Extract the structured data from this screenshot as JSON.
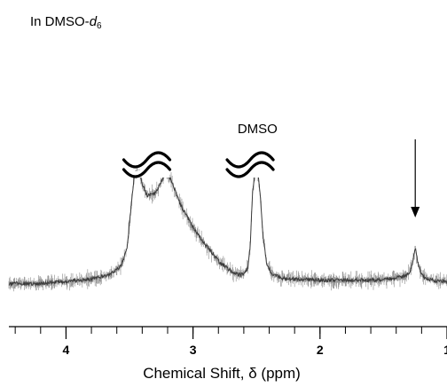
{
  "solvent": {
    "prefix": "In DMSO-",
    "italic": "d",
    "subscript": "6"
  },
  "chart_data": {
    "type": "line",
    "title": "",
    "xlabel": "Chemical Shift, δ (ppm)",
    "ylabel": "",
    "xlim": [
      4.45,
      1.0
    ],
    "x_reversed": true,
    "x_ticks_major": [
      4,
      3,
      2,
      1
    ],
    "x_tick_labels": [
      "4",
      "3",
      "2",
      "1"
    ],
    "x_ticks_minor_step": 0.2,
    "grid": false,
    "annotations": [
      {
        "text": "DMSO",
        "x": 2.52
      },
      {
        "text": "",
        "type": "arrow",
        "x": 1.25
      }
    ],
    "axis_breaks": [
      3.35,
      2.55
    ],
    "peaks": [
      {
        "center": 3.42,
        "type": "truncated-broad"
      },
      {
        "center": 3.22,
        "type": "truncated-broad"
      },
      {
        "center": 2.5,
        "type": "truncated"
      },
      {
        "center": 1.25,
        "type": "small"
      }
    ],
    "series": [
      {
        "x": [
          4.45,
          4.2,
          4.0,
          3.8,
          3.65,
          3.58,
          3.55,
          3.52,
          3.5,
          3.48,
          3.46,
          3.44,
          3.42,
          3.4,
          3.36,
          3.3,
          3.25,
          3.22,
          3.2,
          3.16,
          3.1,
          3.0,
          2.9,
          2.8,
          2.7,
          2.65,
          2.6,
          2.57,
          2.55,
          2.53,
          2.51,
          2.5,
          2.49,
          2.47,
          2.45,
          2.42,
          2.38,
          2.3,
          2.2,
          2.0,
          1.8,
          1.6,
          1.45,
          1.35,
          1.3,
          1.28,
          1.26,
          1.25,
          1.24,
          1.22,
          1.2,
          1.17,
          1.12,
          1.05,
          1.0
        ],
        "y": [
          0.02,
          0.02,
          0.04,
          0.06,
          0.1,
          0.16,
          0.22,
          0.34,
          0.55,
          0.8,
          1.0,
          1.0,
          1.0,
          0.9,
          0.8,
          0.82,
          0.92,
          1.0,
          1.0,
          0.9,
          0.72,
          0.52,
          0.36,
          0.22,
          0.13,
          0.1,
          0.1,
          0.16,
          0.35,
          0.85,
          1.0,
          1.0,
          1.0,
          0.8,
          0.45,
          0.2,
          0.1,
          0.07,
          0.06,
          0.05,
          0.05,
          0.05,
          0.06,
          0.08,
          0.11,
          0.16,
          0.27,
          0.33,
          0.27,
          0.16,
          0.1,
          0.07,
          0.05,
          0.04,
          0.04
        ]
      }
    ]
  }
}
